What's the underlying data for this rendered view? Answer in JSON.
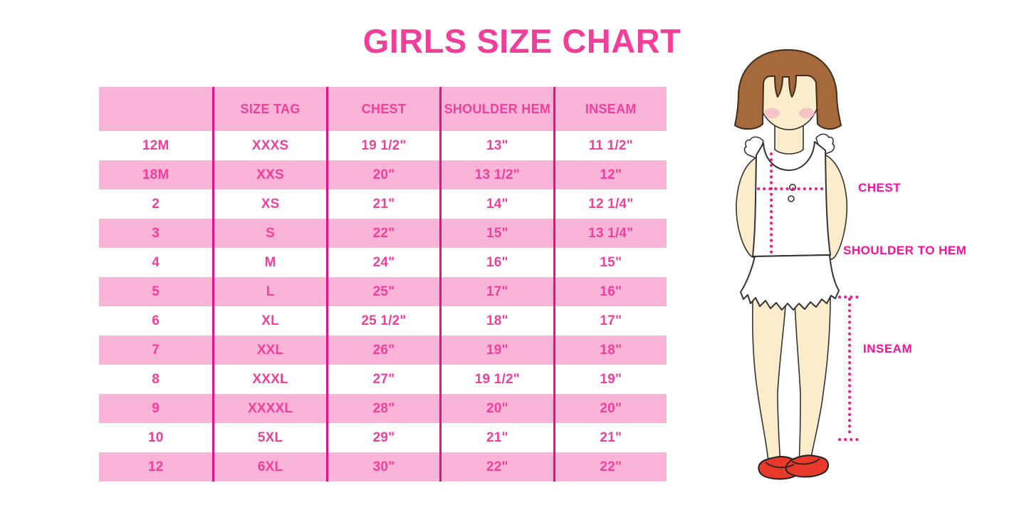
{
  "title": "GIRLS SIZE CHART",
  "chart_data": {
    "type": "table",
    "title": "GIRLS SIZE CHART",
    "columns": [
      "",
      "SIZE TAG",
      "CHEST",
      "SHOULDER HEM",
      "INSEAM"
    ],
    "rows": [
      [
        "12M",
        "XXXS",
        "19 1/2\"",
        "13\"",
        "11 1/2\""
      ],
      [
        "18M",
        "XXS",
        "20\"",
        "13 1/2\"",
        "12\""
      ],
      [
        "2",
        "XS",
        "21\"",
        "14\"",
        "12 1/4\""
      ],
      [
        "3",
        "S",
        "22\"",
        "15\"",
        "13 1/4\""
      ],
      [
        "4",
        "M",
        "24\"",
        "16\"",
        "15\""
      ],
      [
        "5",
        "L",
        "25\"",
        "17\"",
        "16\""
      ],
      [
        "6",
        "XL",
        "25 1/2\"",
        "18\"",
        "17\""
      ],
      [
        "7",
        "XXL",
        "26\"",
        "19\"",
        "18\""
      ],
      [
        "8",
        "XXXL",
        "27\"",
        "19 1/2\"",
        "19\""
      ],
      [
        "9",
        "XXXXL",
        "28\"",
        "20\"",
        "20\""
      ],
      [
        "10",
        "5XL",
        "29\"",
        "21\"",
        "21\""
      ],
      [
        "12",
        "6XL",
        "30\"",
        "22\"",
        "22\""
      ]
    ],
    "layout_hints": {
      "header_background": "pink band",
      "row_striping": "white and pink alternating, first data row white",
      "column_dividers": "magenta vertical lines full table height",
      "legend_position": "none",
      "grid": "columns only"
    }
  },
  "figure": {
    "illustration": "girl-measurement-diagram",
    "labels": {
      "chest": "CHEST",
      "shoulder_to_hem": "SHOULDER TO HEM",
      "inseam": "INSEAM"
    }
  },
  "colors": {
    "title_pink": "#F23E9B",
    "row_band_pink": "#F9B4D8",
    "table_text_pink": "#F0409C",
    "divider_magenta": "#E5108A",
    "measure_label_pink": "#F5119B",
    "dotted_line_pink": "#F0188F",
    "hair_brown": "#A5693B",
    "skin_cream": "#FBEDCB",
    "blush_pink": "#F3AEC1",
    "shoe_red": "#E8392B"
  }
}
